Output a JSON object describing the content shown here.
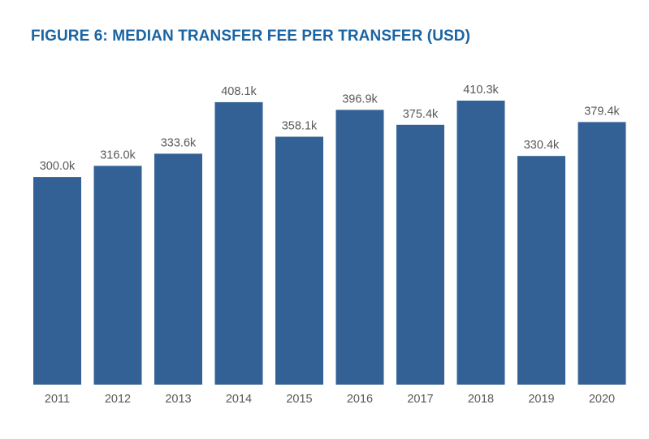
{
  "chart_data": {
    "type": "bar",
    "title": "FIGURE 6: MEDIAN TRANSFER FEE PER TRANSFER (USD)",
    "xlabel": "",
    "ylabel": "",
    "categories": [
      "2011",
      "2012",
      "2013",
      "2014",
      "2015",
      "2016",
      "2017",
      "2018",
      "2019",
      "2020"
    ],
    "values": [
      300.0,
      316.0,
      333.6,
      408.1,
      358.1,
      396.9,
      375.4,
      410.3,
      330.4,
      379.4
    ],
    "value_labels": [
      "300.0k",
      "316.0k",
      "333.6k",
      "408.1k",
      "358.1k",
      "396.9k",
      "375.4k",
      "410.3k",
      "330.4k",
      "379.4k"
    ],
    "ylim": [
      0,
      410.3
    ],
    "grid": false,
    "legend": "none",
    "bar_color": "#336195"
  }
}
